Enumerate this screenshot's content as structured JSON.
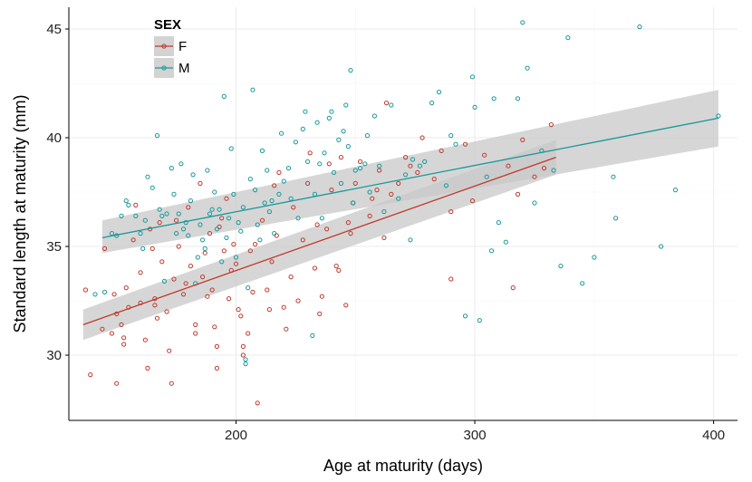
{
  "chart_data": {
    "type": "scatter",
    "title": "",
    "xlabel": "Age at maturity (days)",
    "ylabel": "Standard length at maturity (mm)",
    "xlim": [
      130,
      410
    ],
    "ylim": [
      27,
      46
    ],
    "xticks": [
      200,
      300,
      400
    ],
    "yticks": [
      30,
      35,
      40,
      45
    ],
    "grid": true,
    "legend": {
      "title": "SEX",
      "position": "top-left-inside",
      "entries": [
        "F",
        "M"
      ]
    },
    "colors": {
      "F": "#c0392b",
      "M": "#17989b",
      "ribbon": "#c8c8c8",
      "grid": "#ebebeb",
      "axis": "#000000"
    },
    "series": [
      {
        "name": "F",
        "fit": {
          "x": [
            136,
            334
          ],
          "y": [
            31.4,
            39.1
          ],
          "ci_upper": [
            32.1,
            39.9
          ],
          "ci_lower": [
            30.7,
            38.3
          ]
        },
        "points": [
          [
            137,
            33.0
          ],
          [
            139,
            29.1
          ],
          [
            144,
            31.2
          ],
          [
            145,
            34.9
          ],
          [
            148,
            31.0
          ],
          [
            149,
            32.8
          ],
          [
            150,
            28.7
          ],
          [
            150,
            31.9
          ],
          [
            152,
            31.4
          ],
          [
            153,
            30.8
          ],
          [
            153,
            30.5
          ],
          [
            154,
            33.1
          ],
          [
            155,
            32.2
          ],
          [
            157,
            35.3
          ],
          [
            158,
            36.9
          ],
          [
            160,
            33.8
          ],
          [
            160,
            32.4
          ],
          [
            162,
            30.7
          ],
          [
            163,
            29.4
          ],
          [
            164,
            35.8
          ],
          [
            165,
            34.9
          ],
          [
            166,
            32.6
          ],
          [
            166,
            32.3
          ],
          [
            167,
            31.7
          ],
          [
            168,
            36.1
          ],
          [
            169,
            34.3
          ],
          [
            171,
            32.0
          ],
          [
            172,
            30.2
          ],
          [
            173,
            28.7
          ],
          [
            174,
            33.5
          ],
          [
            175,
            36.2
          ],
          [
            176,
            35.0
          ],
          [
            178,
            32.8
          ],
          [
            179,
            33.3
          ],
          [
            180,
            36.8
          ],
          [
            181,
            34.1
          ],
          [
            183,
            31.4
          ],
          [
            183,
            31.0
          ],
          [
            185,
            37.9
          ],
          [
            186,
            33.6
          ],
          [
            187,
            34.7
          ],
          [
            188,
            32.7
          ],
          [
            189,
            35.6
          ],
          [
            190,
            33.0
          ],
          [
            191,
            31.3
          ],
          [
            192,
            30.4
          ],
          [
            192,
            29.4
          ],
          [
            193,
            35.9
          ],
          [
            194,
            36.3
          ],
          [
            195,
            34.8
          ],
          [
            196,
            37.2
          ],
          [
            197,
            32.6
          ],
          [
            198,
            33.9
          ],
          [
            199,
            35.1
          ],
          [
            200,
            34.2
          ],
          [
            201,
            32.1
          ],
          [
            202,
            31.8
          ],
          [
            203,
            30.4
          ],
          [
            203,
            30.0
          ],
          [
            205,
            31.0
          ],
          [
            206,
            34.8
          ],
          [
            207,
            32.9
          ],
          [
            208,
            35.1
          ],
          [
            209,
            27.8
          ],
          [
            211,
            36.2
          ],
          [
            213,
            33.0
          ],
          [
            214,
            32.1
          ],
          [
            215,
            34.3
          ],
          [
            216,
            37.8
          ],
          [
            217,
            35.5
          ],
          [
            218,
            38.4
          ],
          [
            220,
            32.2
          ],
          [
            221,
            31.2
          ],
          [
            223,
            33.6
          ],
          [
            224,
            36.8
          ],
          [
            226,
            32.5
          ],
          [
            228,
            35.3
          ],
          [
            230,
            37.9
          ],
          [
            231,
            39.3
          ],
          [
            233,
            34.0
          ],
          [
            234,
            36.0
          ],
          [
            235,
            31.9
          ],
          [
            236,
            32.7
          ],
          [
            238,
            35.8
          ],
          [
            239,
            38.8
          ],
          [
            240,
            37.6
          ],
          [
            242,
            34.1
          ],
          [
            243,
            33.9
          ],
          [
            244,
            39.1
          ],
          [
            246,
            32.3
          ],
          [
            247,
            36.1
          ],
          [
            248,
            35.6
          ],
          [
            249,
            37.0
          ],
          [
            250,
            37.9
          ],
          [
            252,
            38.9
          ],
          [
            256,
            36.4
          ],
          [
            257,
            37.2
          ],
          [
            259,
            37.6
          ],
          [
            260,
            38.5
          ],
          [
            262,
            35.4
          ],
          [
            263,
            41.6
          ],
          [
            265,
            37.4
          ],
          [
            268,
            37.9
          ],
          [
            271,
            39.1
          ],
          [
            273,
            38.7
          ],
          [
            276,
            38.4
          ],
          [
            278,
            40.0
          ],
          [
            283,
            38.1
          ],
          [
            286,
            39.4
          ],
          [
            290,
            36.6
          ],
          [
            290,
            33.5
          ],
          [
            296,
            39.7
          ],
          [
            299,
            37.1
          ],
          [
            304,
            39.2
          ],
          [
            314,
            38.7
          ],
          [
            316,
            33.1
          ],
          [
            318,
            37.4
          ],
          [
            320,
            39.9
          ],
          [
            325,
            38.2
          ],
          [
            329,
            38.6
          ],
          [
            332,
            40.6
          ]
        ]
      },
      {
        "name": "M",
        "fit": {
          "x": [
            144,
            402
          ],
          "y": [
            35.4,
            40.9
          ],
          "ci_upper": [
            36.2,
            42.2
          ],
          "ci_lower": [
            34.7,
            39.6
          ]
        },
        "points": [
          [
            141,
            32.8
          ],
          [
            145,
            32.9
          ],
          [
            148,
            35.6
          ],
          [
            150,
            35.5
          ],
          [
            152,
            36.4
          ],
          [
            154,
            37.1
          ],
          [
            155,
            36.9
          ],
          [
            158,
            36.4
          ],
          [
            160,
            35.6
          ],
          [
            161,
            34.9
          ],
          [
            162,
            36.2
          ],
          [
            163,
            38.2
          ],
          [
            165,
            37.7
          ],
          [
            167,
            40.1
          ],
          [
            168,
            36.7
          ],
          [
            169,
            36.4
          ],
          [
            170,
            33.4
          ],
          [
            171,
            36.5
          ],
          [
            173,
            38.6
          ],
          [
            174,
            37.4
          ],
          [
            175,
            35.6
          ],
          [
            176,
            36.5
          ],
          [
            177,
            38.8
          ],
          [
            178,
            35.8
          ],
          [
            179,
            36.1
          ],
          [
            180,
            35.5
          ],
          [
            181,
            37.1
          ],
          [
            182,
            38.3
          ],
          [
            183,
            33.3
          ],
          [
            184,
            34.5
          ],
          [
            185,
            36.0
          ],
          [
            186,
            35.3
          ],
          [
            187,
            34.9
          ],
          [
            188,
            38.5
          ],
          [
            189,
            36.5
          ],
          [
            190,
            36.7
          ],
          [
            191,
            37.5
          ],
          [
            192,
            35.8
          ],
          [
            193,
            36.7
          ],
          [
            194,
            34.3
          ],
          [
            195,
            41.9
          ],
          [
            196,
            35.4
          ],
          [
            197,
            36.3
          ],
          [
            198,
            39.5
          ],
          [
            199,
            37.4
          ],
          [
            200,
            34.5
          ],
          [
            201,
            36.1
          ],
          [
            202,
            35.7
          ],
          [
            203,
            36.8
          ],
          [
            204,
            29.6
          ],
          [
            204,
            29.8
          ],
          [
            205,
            33.1
          ],
          [
            206,
            38.1
          ],
          [
            207,
            42.2
          ],
          [
            208,
            37.6
          ],
          [
            209,
            36.0
          ],
          [
            210,
            35.3
          ],
          [
            211,
            39.4
          ],
          [
            212,
            37.0
          ],
          [
            213,
            38.5
          ],
          [
            214,
            36.6
          ],
          [
            215,
            37.1
          ],
          [
            216,
            35.6
          ],
          [
            218,
            37.4
          ],
          [
            219,
            40.2
          ],
          [
            220,
            38.0
          ],
          [
            222,
            38.6
          ],
          [
            223,
            37.2
          ],
          [
            225,
            39.8
          ],
          [
            226,
            36.3
          ],
          [
            228,
            40.4
          ],
          [
            229,
            41.2
          ],
          [
            230,
            38.9
          ],
          [
            232,
            30.9
          ],
          [
            233,
            37.4
          ],
          [
            234,
            40.7
          ],
          [
            235,
            38.8
          ],
          [
            236,
            36.3
          ],
          [
            237,
            39.3
          ],
          [
            239,
            40.9
          ],
          [
            240,
            41.2
          ],
          [
            241,
            38.4
          ],
          [
            243,
            39.9
          ],
          [
            244,
            37.9
          ],
          [
            245,
            40.3
          ],
          [
            246,
            41.5
          ],
          [
            247,
            39.6
          ],
          [
            248,
            43.1
          ],
          [
            249,
            37.0
          ],
          [
            250,
            38.5
          ],
          [
            252,
            38.6
          ],
          [
            254,
            38.8
          ],
          [
            255,
            40.1
          ],
          [
            256,
            37.5
          ],
          [
            258,
            41.0
          ],
          [
            260,
            38.7
          ],
          [
            262,
            36.6
          ],
          [
            265,
            41.5
          ],
          [
            268,
            37.2
          ],
          [
            271,
            38.3
          ],
          [
            273,
            35.3
          ],
          [
            274,
            39.0
          ],
          [
            277,
            38.7
          ],
          [
            279,
            38.9
          ],
          [
            282,
            41.6
          ],
          [
            285,
            42.1
          ],
          [
            288,
            37.8
          ],
          [
            290,
            40.1
          ],
          [
            292,
            39.7
          ],
          [
            296,
            31.8
          ],
          [
            299,
            42.8
          ],
          [
            300,
            41.4
          ],
          [
            302,
            31.6
          ],
          [
            305,
            38.2
          ],
          [
            307,
            34.8
          ],
          [
            308,
            41.8
          ],
          [
            310,
            36.1
          ],
          [
            313,
            35.2
          ],
          [
            318,
            41.8
          ],
          [
            320,
            45.3
          ],
          [
            322,
            43.2
          ],
          [
            325,
            37.0
          ],
          [
            328,
            39.4
          ],
          [
            333,
            38.5
          ],
          [
            336,
            34.1
          ],
          [
            339,
            44.6
          ],
          [
            345,
            33.3
          ],
          [
            350,
            34.5
          ],
          [
            358,
            38.2
          ],
          [
            359,
            36.3
          ],
          [
            369,
            45.1
          ],
          [
            378,
            35.0
          ],
          [
            384,
            37.6
          ],
          [
            402,
            41.0
          ]
        ]
      }
    ]
  }
}
